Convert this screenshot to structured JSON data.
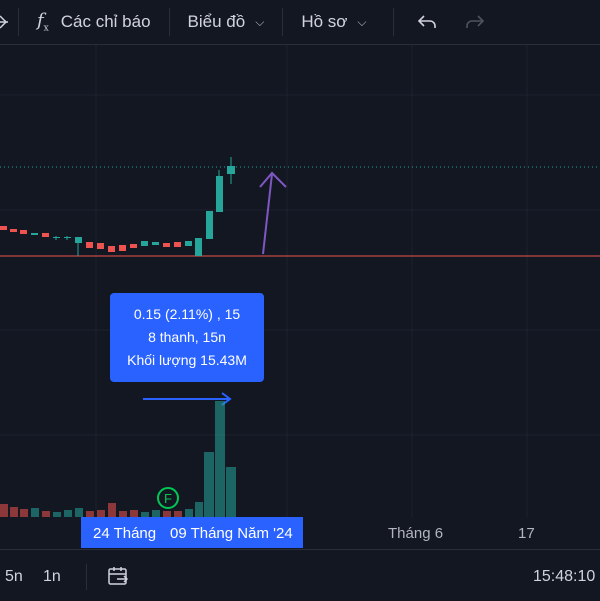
{
  "toolbar": {
    "indicators_label": "Các chỉ báo",
    "chart_type_label": "Biểu đồ",
    "profile_label": "Hồ sơ"
  },
  "tooltip": {
    "line1": "0.15 (2.11%) , 15",
    "line2": "8 thanh, 15n",
    "line3": "Khối lượng 15.43M"
  },
  "time_axis": {
    "range_start": "24 Tháng",
    "range_end": "09 Tháng Năm '24",
    "label_month6": "Tháng 6",
    "label_17": "17"
  },
  "bottom": {
    "interval_5n": "5n",
    "interval_1n": "1n",
    "clock": "15:48:10"
  },
  "event_marker": "F",
  "colors": {
    "background": "#131722",
    "up": "#26a69a",
    "down": "#ef5350",
    "accent": "#2962ff",
    "arrow": "#7e57c2"
  }
}
